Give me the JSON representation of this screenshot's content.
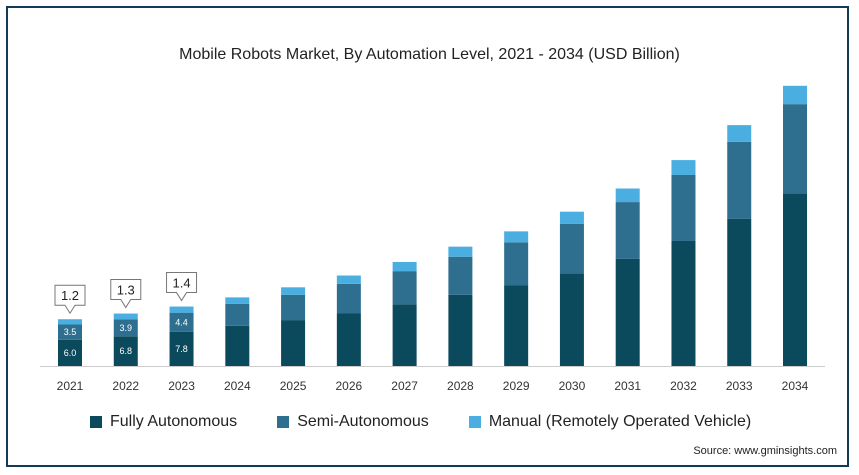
{
  "chart_data": {
    "type": "bar",
    "stacked": true,
    "title": "Mobile Robots Market, By Automation Level, 2021 - 2034 (USD Billion)",
    "xlabel": "",
    "ylabel": "",
    "categories": [
      "2021",
      "2022",
      "2023",
      "2024",
      "2025",
      "2026",
      "2027",
      "2028",
      "2029",
      "2030",
      "2031",
      "2032",
      "2033",
      "2034"
    ],
    "series": [
      {
        "name": "Fully Autonomous",
        "color": "#0b4a5c",
        "values": [
          6.0,
          6.8,
          7.8,
          9.2,
          10.5,
          12.1,
          14.1,
          16.3,
          18.5,
          21.2,
          24.5,
          28.6,
          33.7,
          39.5
        ]
      },
      {
        "name": "Semi-Autonomous",
        "color": "#2e6e8e",
        "values": [
          3.5,
          3.9,
          4.4,
          5.0,
          5.8,
          6.7,
          7.6,
          8.7,
          9.8,
          11.3,
          13.0,
          15.1,
          17.6,
          20.4
        ]
      },
      {
        "name": "Manual (Remotely Operated Vehicle)",
        "color": "#4aaee0",
        "values": [
          1.2,
          1.3,
          1.4,
          1.5,
          1.7,
          1.9,
          2.1,
          2.3,
          2.5,
          2.8,
          3.1,
          3.4,
          3.8,
          4.2
        ]
      }
    ],
    "data_labels": [
      {
        "category": "2021",
        "series": "Fully Autonomous",
        "text": "6.0"
      },
      {
        "category": "2021",
        "series": "Semi-Autonomous",
        "text": "3.5"
      },
      {
        "category": "2022",
        "series": "Fully Autonomous",
        "text": "6.8"
      },
      {
        "category": "2022",
        "series": "Semi-Autonomous",
        "text": "3.9"
      },
      {
        "category": "2023",
        "series": "Fully Autonomous",
        "text": "7.8"
      },
      {
        "category": "2023",
        "series": "Semi-Autonomous",
        "text": "4.4"
      }
    ],
    "callouts": [
      {
        "category": "2021",
        "text": "1.2"
      },
      {
        "category": "2022",
        "text": "1.3"
      },
      {
        "category": "2023",
        "text": "1.4"
      }
    ],
    "ylim": [
      0,
      70
    ],
    "grid": false,
    "legend_position": "bottom-left",
    "source": "Source: www.gminsights.com"
  }
}
